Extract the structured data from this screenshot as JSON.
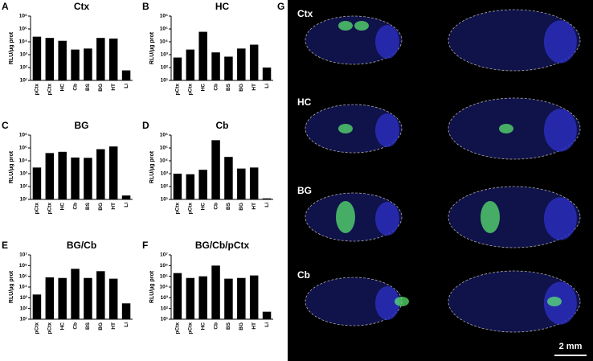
{
  "chart_data": [
    {
      "type": "bar",
      "panel": "A",
      "title": "Ctx",
      "ylabel": "RLU/µg prot",
      "log_scale": true,
      "color": "#000000",
      "categories": [
        "pCtx",
        "pCtx",
        "HC",
        "Cb",
        "BS",
        "BG",
        "HT",
        "Li"
      ],
      "values": [
        25000,
        20000,
        12000,
        2500,
        3000,
        20000,
        18000,
        60
      ],
      "ylim": [
        10,
        1000000
      ],
      "yticks": [
        {
          "value": 10,
          "label": "10¹"
        },
        {
          "value": 100,
          "label": "10²"
        },
        {
          "value": 1000,
          "label": "10³"
        },
        {
          "value": 10000,
          "label": "10⁴"
        },
        {
          "value": 100000,
          "label": "10⁵"
        },
        {
          "value": 1000000,
          "label": "10⁶"
        }
      ]
    },
    {
      "type": "bar",
      "panel": "B",
      "title": "HC",
      "ylabel": "RLU/µg prot",
      "log_scale": true,
      "color": "#000000",
      "categories": [
        "pCtx",
        "pCtx",
        "HC",
        "Cb",
        "BS",
        "BG",
        "HT",
        "Li"
      ],
      "values": [
        600,
        2500,
        60000,
        1500,
        700,
        3000,
        6000,
        100
      ],
      "ylim": [
        10,
        1000000
      ],
      "yticks": [
        {
          "value": 10,
          "label": "10¹"
        },
        {
          "value": 100,
          "label": "10²"
        },
        {
          "value": 1000,
          "label": "10³"
        },
        {
          "value": 10000,
          "label": "10⁴"
        },
        {
          "value": 100000,
          "label": "10⁵"
        },
        {
          "value": 1000000,
          "label": "10⁶"
        }
      ]
    },
    {
      "type": "bar",
      "panel": "C",
      "title": "BG",
      "ylabel": "RLU/µg prot",
      "log_scale": true,
      "color": "#000000",
      "categories": [
        "pCtx",
        "pCtx",
        "HC",
        "Cb",
        "BS",
        "BG",
        "HT",
        "Li"
      ],
      "values": [
        3000,
        40000,
        50000,
        18000,
        17000,
        80000,
        130000,
        20
      ],
      "ylim": [
        10,
        1000000
      ],
      "yticks": [
        {
          "value": 10,
          "label": "10¹"
        },
        {
          "value": 100,
          "label": "10²"
        },
        {
          "value": 1000,
          "label": "10³"
        },
        {
          "value": 10000,
          "label": "10⁴"
        },
        {
          "value": 100000,
          "label": "10⁵"
        },
        {
          "value": 1000000,
          "label": "10⁶"
        }
      ]
    },
    {
      "type": "bar",
      "panel": "D",
      "title": "Cb",
      "ylabel": "RLU/µg prot",
      "log_scale": true,
      "color": "#000000",
      "categories": [
        "pCtx",
        "pCtx",
        "HC",
        "Cb",
        "BS",
        "BG",
        "HT",
        "Li"
      ],
      "values": [
        1000,
        900,
        2000,
        400000,
        20000,
        2500,
        3000,
        12
      ],
      "ylim": [
        10,
        1000000
      ],
      "yticks": [
        {
          "value": 10,
          "label": "10¹"
        },
        {
          "value": 100,
          "label": "10²"
        },
        {
          "value": 1000,
          "label": "10³"
        },
        {
          "value": 10000,
          "label": "10⁴"
        },
        {
          "value": 100000,
          "label": "10⁵"
        },
        {
          "value": 1000000,
          "label": "10⁶"
        }
      ]
    },
    {
      "type": "bar",
      "panel": "E",
      "title": "BG/Cb",
      "ylabel": "RLU/µg prot",
      "log_scale": true,
      "color": "#000000",
      "categories": [
        "pCtx",
        "pCtx",
        "HC",
        "Cb",
        "BS",
        "BG",
        "HT",
        "Li"
      ],
      "values": [
        2000,
        80000,
        70000,
        500000,
        70000,
        300000,
        60000,
        300
      ],
      "ylim": [
        10,
        10000000
      ],
      "yticks": [
        {
          "value": 10,
          "label": "10¹"
        },
        {
          "value": 100,
          "label": "10²"
        },
        {
          "value": 1000,
          "label": "10³"
        },
        {
          "value": 10000,
          "label": "10⁴"
        },
        {
          "value": 100000,
          "label": "10⁵"
        },
        {
          "value": 1000000,
          "label": "10⁶"
        },
        {
          "value": 10000000,
          "label": "10⁷"
        }
      ]
    },
    {
      "type": "bar",
      "panel": "F",
      "title": "BG/Cb/pCtx",
      "ylabel": "RLU/µg prot",
      "log_scale": true,
      "color": "#000000",
      "categories": [
        "pCtx",
        "pCtx",
        "HC",
        "Cb",
        "BS",
        "BG",
        "HT",
        "Li"
      ],
      "values": [
        200000,
        70000,
        100000,
        1000000,
        60000,
        70000,
        120000,
        50
      ],
      "ylim": [
        10,
        10000000
      ],
      "yticks": [
        {
          "value": 10,
          "label": "10¹"
        },
        {
          "value": 100,
          "label": "10²"
        },
        {
          "value": 1000,
          "label": "10³"
        },
        {
          "value": 10000,
          "label": "10⁴"
        },
        {
          "value": 100000,
          "label": "10⁵"
        },
        {
          "value": 1000000,
          "label": "10⁶"
        },
        {
          "value": 10000000,
          "label": "10⁷"
        }
      ]
    }
  ],
  "image_panel": {
    "panel": "G",
    "rows": [
      "Ctx",
      "HC",
      "BG",
      "Cb"
    ],
    "scale_bar": "2 mm"
  }
}
